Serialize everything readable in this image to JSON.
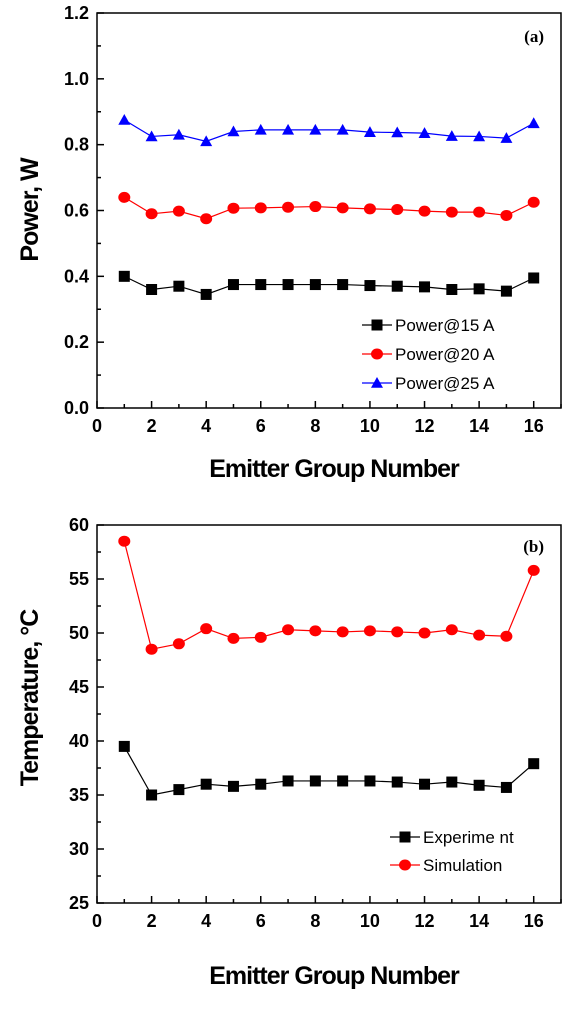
{
  "chart_data": [
    {
      "type": "line",
      "panel_label": "(a)",
      "xlabel": "Emitter Group Number",
      "ylabel": "Power, W",
      "xlim": [
        0,
        17
      ],
      "ylim": [
        0,
        1.2
      ],
      "xticks": [
        0,
        2,
        4,
        6,
        8,
        10,
        12,
        14,
        16
      ],
      "yticks": [
        0.0,
        0.2,
        0.4,
        0.6,
        0.8,
        1.0,
        1.2
      ],
      "ytick_labels": [
        "0.0",
        "0.2",
        "0.4",
        "0.6",
        "0.8",
        "1.0",
        "1.2"
      ],
      "xtick_labels": [
        "0",
        "2",
        "4",
        "6",
        "8",
        "10",
        "12",
        "14",
        "16"
      ],
      "legend_position": "bottom-right",
      "x": [
        1,
        2,
        3,
        4,
        5,
        6,
        7,
        8,
        9,
        10,
        11,
        12,
        13,
        14,
        15,
        16
      ],
      "series": [
        {
          "name": "Power@15 A",
          "color": "#000000",
          "marker": "square",
          "values": [
            0.4,
            0.36,
            0.37,
            0.345,
            0.375,
            0.375,
            0.375,
            0.375,
            0.375,
            0.372,
            0.37,
            0.368,
            0.36,
            0.362,
            0.355,
            0.395
          ]
        },
        {
          "name": "Power@20 A",
          "color": "#ff0000",
          "marker": "circle",
          "values": [
            0.64,
            0.59,
            0.598,
            0.575,
            0.607,
            0.608,
            0.61,
            0.612,
            0.608,
            0.605,
            0.603,
            0.598,
            0.595,
            0.595,
            0.585,
            0.625
          ]
        },
        {
          "name": "Power@25 A",
          "color": "#0000ff",
          "marker": "triangle",
          "values": [
            0.875,
            0.825,
            0.83,
            0.81,
            0.84,
            0.845,
            0.845,
            0.845,
            0.845,
            0.838,
            0.837,
            0.835,
            0.826,
            0.825,
            0.82,
            0.865
          ]
        }
      ]
    },
    {
      "type": "line",
      "panel_label": "(b)",
      "xlabel": "Emitter Group Number",
      "ylabel": "Temperature,   °C",
      "xlim": [
        0,
        17
      ],
      "ylim": [
        25,
        60
      ],
      "xticks": [
        0,
        2,
        4,
        6,
        8,
        10,
        12,
        14,
        16
      ],
      "yticks": [
        25,
        30,
        35,
        40,
        45,
        50,
        55,
        60
      ],
      "ytick_labels": [
        "25",
        "30",
        "35",
        "40",
        "45",
        "50",
        "55",
        "60"
      ],
      "xtick_labels": [
        "0",
        "2",
        "4",
        "6",
        "8",
        "10",
        "12",
        "14",
        "16"
      ],
      "legend_position": "bottom-right",
      "x": [
        1,
        2,
        3,
        4,
        5,
        6,
        7,
        8,
        9,
        10,
        11,
        12,
        13,
        14,
        15,
        16
      ],
      "series": [
        {
          "name": "Experime nt",
          "color": "#000000",
          "marker": "square",
          "values": [
            39.5,
            35.0,
            35.5,
            36.0,
            35.8,
            36.0,
            36.3,
            36.3,
            36.3,
            36.3,
            36.2,
            36.0,
            36.2,
            35.9,
            35.7,
            37.9
          ]
        },
        {
          "name": "Simulation",
          "color": "#ff0000",
          "marker": "circle",
          "values": [
            58.5,
            48.5,
            49.0,
            50.4,
            49.5,
            49.6,
            50.3,
            50.2,
            50.1,
            50.2,
            50.1,
            50.0,
            50.3,
            49.8,
            49.7,
            55.8
          ]
        }
      ]
    }
  ]
}
